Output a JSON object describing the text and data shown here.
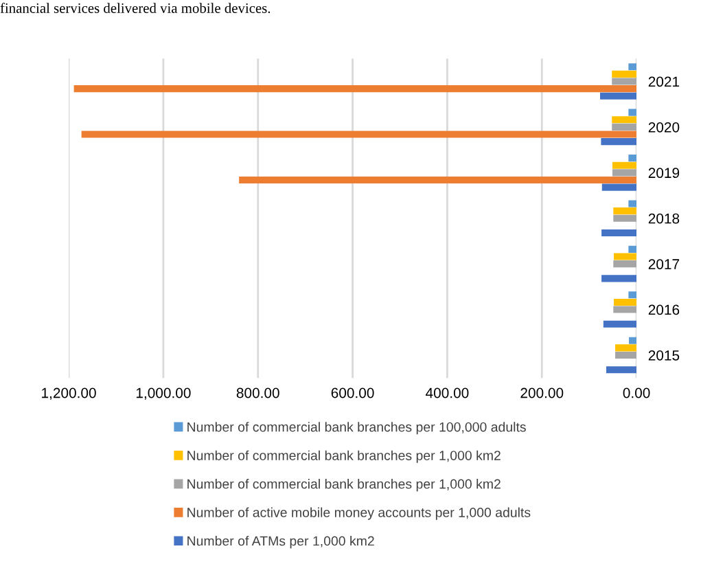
{
  "chart_data": {
    "type": "bar",
    "orientation": "horizontal",
    "annotations": [
      "financial services delivered via mobile devices."
    ],
    "categories": [
      "2021",
      "2020",
      "2019",
      "2018",
      "2017",
      "2016",
      "2015"
    ],
    "series": [
      {
        "name": "Number of commercial bank branches per 100,000 adults",
        "color": "#5b9bd5",
        "values": [
          17,
          17,
          17,
          17,
          17,
          17,
          16
        ]
      },
      {
        "name": "Number of commercial bank branches per 1,000 km2",
        "color": "#ffc000",
        "values": [
          52,
          52,
          51,
          49,
          48,
          48,
          45
        ]
      },
      {
        "name": "Number of commercial bank branches per 1,000 km2",
        "color": "#a5a5a5",
        "values": [
          52,
          52,
          51,
          49,
          49,
          49,
          45
        ]
      },
      {
        "name": "Number of active mobile money accounts per 1,000 adults",
        "color": "#ed7d31",
        "values": [
          1189,
          1173,
          840,
          null,
          null,
          null,
          null
        ]
      },
      {
        "name": "Number of ATMs per 1,000 km2",
        "color": "#4472c4",
        "values": [
          77,
          75,
          73,
          74,
          74,
          70,
          64
        ]
      }
    ],
    "xlim": [
      1200,
      0
    ],
    "xticks": [
      {
        "value": 1200,
        "label": "1,200.00"
      },
      {
        "value": 1000,
        "label": "1,000.00"
      },
      {
        "value": 800,
        "label": "800.00"
      },
      {
        "value": 600,
        "label": "600.00"
      },
      {
        "value": 400,
        "label": "400.00"
      },
      {
        "value": 200,
        "label": "200.00"
      },
      {
        "value": 0,
        "label": "0.00"
      }
    ],
    "grid": "x",
    "legend": "bottom"
  }
}
